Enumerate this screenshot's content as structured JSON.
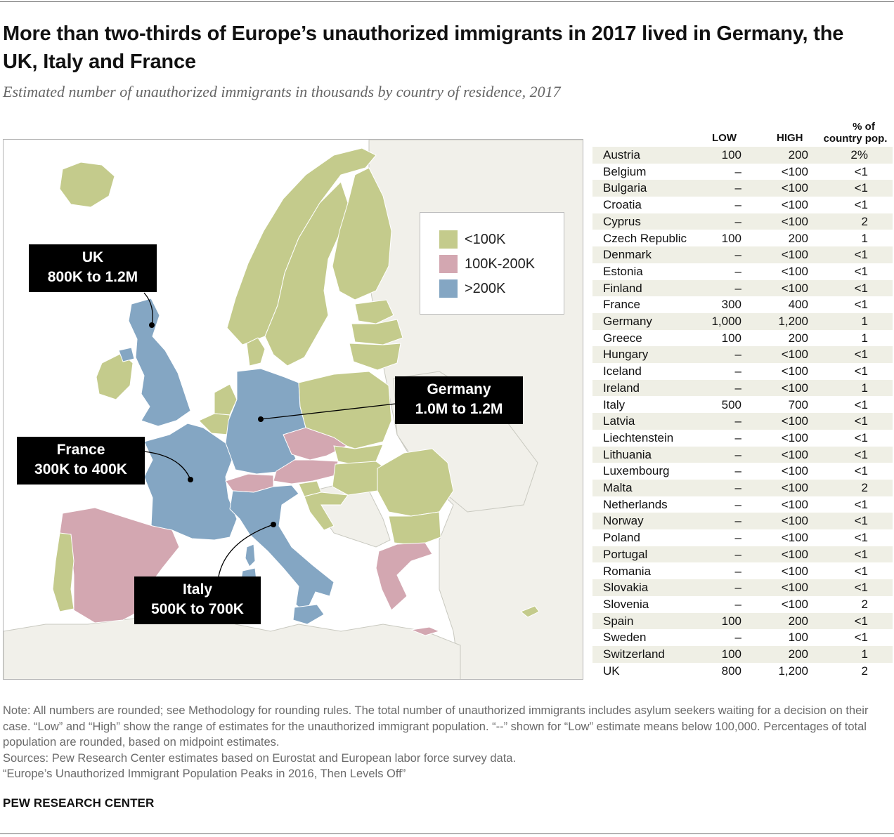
{
  "title": "More than two-thirds of Europe’s unauthorized immigrants in 2017 lived in Germany, the UK, Italy and France",
  "subtitle": "Estimated number of unauthorized immigrants in thousands by country of residence, 2017",
  "colors": {
    "low": "#c4cb8c",
    "mid": "#d3a7b1",
    "high": "#84a6c3",
    "background": "#f1f0ea",
    "callout": "#000000"
  },
  "legend": {
    "items": [
      {
        "label": "<100K",
        "color": "#c4cb8c"
      },
      {
        "label": "100K-200K",
        "color": "#d3a7b1"
      },
      {
        "label": ">200K",
        "color": "#84a6c3"
      }
    ]
  },
  "callouts": {
    "uk": {
      "name": "UK",
      "range": "800K to 1.2M"
    },
    "germany": {
      "name": "Germany",
      "range": "1.0M to 1.2M"
    },
    "france": {
      "name": "France",
      "range": "300K to 400K"
    },
    "italy": {
      "name": "Italy",
      "range": "500K to 700K"
    }
  },
  "table": {
    "headers": {
      "low": "LOW",
      "high": "HIGH",
      "pct_line1": "% of",
      "pct_line2": "country pop."
    },
    "rows": [
      {
        "country": "Austria",
        "low": "100",
        "high": "200",
        "pct": "2%"
      },
      {
        "country": "Belgium",
        "low": "–",
        "high": "<100",
        "pct": "<1"
      },
      {
        "country": "Bulgaria",
        "low": "–",
        "high": "<100",
        "pct": "<1"
      },
      {
        "country": "Croatia",
        "low": "–",
        "high": "<100",
        "pct": "<1"
      },
      {
        "country": "Cyprus",
        "low": "–",
        "high": "<100",
        "pct": "2"
      },
      {
        "country": "Czech Republic",
        "low": "100",
        "high": "200",
        "pct": "1"
      },
      {
        "country": "Denmark",
        "low": "–",
        "high": "<100",
        "pct": "<1"
      },
      {
        "country": "Estonia",
        "low": "–",
        "high": "<100",
        "pct": "<1"
      },
      {
        "country": "Finland",
        "low": "–",
        "high": "<100",
        "pct": "<1"
      },
      {
        "country": "France",
        "low": "300",
        "high": "400",
        "pct": "<1"
      },
      {
        "country": "Germany",
        "low": "1,000",
        "high": "1,200",
        "pct": "1"
      },
      {
        "country": "Greece",
        "low": "100",
        "high": "200",
        "pct": "1"
      },
      {
        "country": "Hungary",
        "low": "–",
        "high": "<100",
        "pct": "<1"
      },
      {
        "country": "Iceland",
        "low": "–",
        "high": "<100",
        "pct": "<1"
      },
      {
        "country": "Ireland",
        "low": "–",
        "high": "<100",
        "pct": "1"
      },
      {
        "country": "Italy",
        "low": "500",
        "high": "700",
        "pct": "<1"
      },
      {
        "country": "Latvia",
        "low": "–",
        "high": "<100",
        "pct": "<1"
      },
      {
        "country": "Liechtenstein",
        "low": "–",
        "high": "<100",
        "pct": "<1"
      },
      {
        "country": "Lithuania",
        "low": "–",
        "high": "<100",
        "pct": "<1"
      },
      {
        "country": "Luxembourg",
        "low": "–",
        "high": "<100",
        "pct": "<1"
      },
      {
        "country": "Malta",
        "low": "–",
        "high": "<100",
        "pct": "2"
      },
      {
        "country": "Netherlands",
        "low": "–",
        "high": "<100",
        "pct": "<1"
      },
      {
        "country": "Norway",
        "low": "–",
        "high": "<100",
        "pct": "<1"
      },
      {
        "country": "Poland",
        "low": "–",
        "high": "<100",
        "pct": "<1"
      },
      {
        "country": "Portugal",
        "low": "–",
        "high": "<100",
        "pct": "<1"
      },
      {
        "country": "Romania",
        "low": "–",
        "high": "<100",
        "pct": "<1"
      },
      {
        "country": "Slovakia",
        "low": "–",
        "high": "<100",
        "pct": "<1"
      },
      {
        "country": "Slovenia",
        "low": "–",
        "high": "<100",
        "pct": "2"
      },
      {
        "country": "Spain",
        "low": "100",
        "high": "200",
        "pct": "<1"
      },
      {
        "country": "Sweden",
        "low": "–",
        "high": "100",
        "pct": "<1"
      },
      {
        "country": "Switzerland",
        "low": "100",
        "high": "200",
        "pct": "1"
      },
      {
        "country": "UK",
        "low": "800",
        "high": "1,200",
        "pct": "2"
      }
    ]
  },
  "notes": {
    "note": "Note: All numbers are rounded; see Methodology for rounding rules. The total number of unauthorized immigrants includes asylum seekers waiting for a decision on their case. “Low” and “High” show the range of estimates for the unauthorized immigrant population. “--” shown for “Low” estimate means below 100,000.  Percentages of total population are rounded, based on midpoint estimates.",
    "sources": "Sources: Pew Research Center estimates based on Eurostat and European labor force survey data.",
    "report": "“Europe’s Unauthorized Immigrant Population Peaks in 2016, Then Levels Off”"
  },
  "brand": "PEW RESEARCH CENTER"
}
